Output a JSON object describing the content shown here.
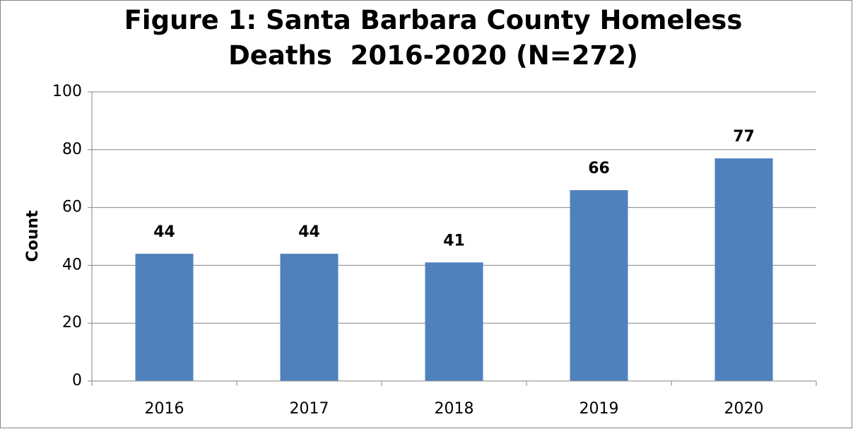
{
  "chart_data": {
    "type": "bar",
    "title": "Figure 1: Santa Barbara County Homeless Deaths  2016-2020 (N=272)",
    "y_label": "Count",
    "categories": [
      "2016",
      "2017",
      "2018",
      "2019",
      "2020"
    ],
    "values": [
      44,
      44,
      41,
      66,
      77
    ],
    "color": "#4f81bd",
    "ylim": [
      0,
      100
    ],
    "yticks": [
      0,
      20,
      40,
      60,
      80,
      100
    ],
    "grid": true
  }
}
